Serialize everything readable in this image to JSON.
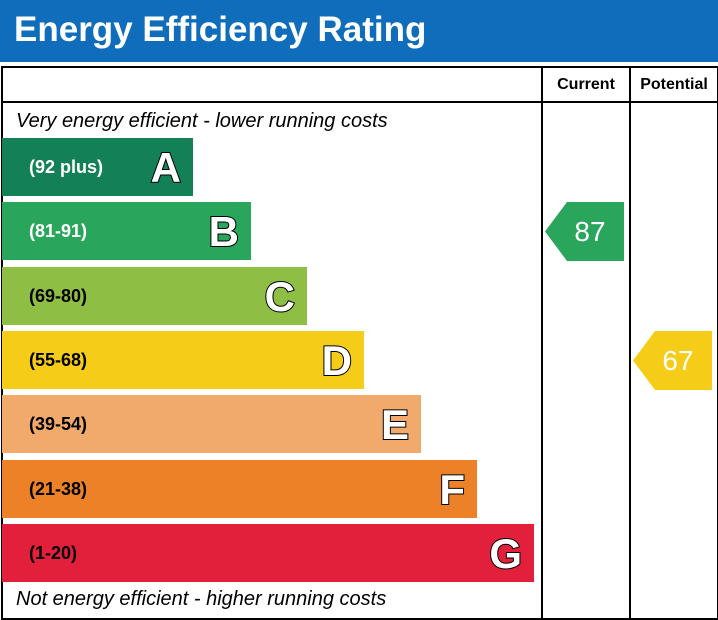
{
  "title": "Energy Efficiency Rating",
  "columns": {
    "current": "Current",
    "potential": "Potential"
  },
  "notes": {
    "top": "Very energy efficient - lower running costs",
    "bottom": "Not energy efficient - higher running costs"
  },
  "chart_data": {
    "type": "bar",
    "bands": [
      {
        "letter": "A",
        "range": "(92 plus)",
        "color": "#138057",
        "range_color": "#ffffff"
      },
      {
        "letter": "B",
        "range": "(81-91)",
        "color": "#2aa55c",
        "range_color": "#ffffff"
      },
      {
        "letter": "C",
        "range": "(69-80)",
        "color": "#8fbe45",
        "range_color": "#000000"
      },
      {
        "letter": "D",
        "range": "(55-68)",
        "color": "#f5cc18",
        "range_color": "#000000"
      },
      {
        "letter": "E",
        "range": "(39-54)",
        "color": "#f2aa6c",
        "range_color": "#000000"
      },
      {
        "letter": "F",
        "range": "(21-38)",
        "color": "#ec8127",
        "range_color": "#000000"
      },
      {
        "letter": "G",
        "range": "(1-20)",
        "color": "#e3203b",
        "range_color": "#000000"
      }
    ],
    "current": {
      "value": 87,
      "label": "87",
      "band": "B",
      "color": "#2aa55c"
    },
    "potential": {
      "value": 67,
      "label": "67",
      "band": "D",
      "color": "#f5cc18"
    }
  }
}
